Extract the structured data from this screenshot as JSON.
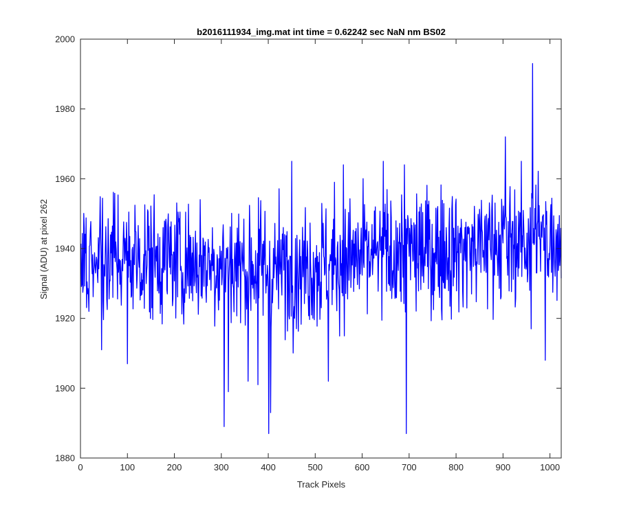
{
  "chart_data": {
    "type": "line",
    "title": "b2016111934_img.mat int time = 0.62242 sec  NaN nm BS02",
    "xlabel": "Track Pixels",
    "ylabel": "Signal (ADU) at pixel 262",
    "xlim": [
      0,
      1024
    ],
    "ylim": [
      1880,
      2000
    ],
    "xticks": [
      0,
      100,
      200,
      300,
      400,
      500,
      600,
      700,
      800,
      900,
      1000
    ],
    "yticks": [
      1880,
      1900,
      1920,
      1940,
      1960,
      1980,
      2000
    ],
    "grid": false,
    "series": [
      {
        "color": "#0000ff",
        "x_start": 1,
        "x_step": 1,
        "count": 1024,
        "mean": 1938,
        "spread": 9,
        "trend": [
          {
            "x": 0,
            "y": 1938
          },
          {
            "x": 300,
            "y": 1936
          },
          {
            "x": 420,
            "y": 1934
          },
          {
            "x": 700,
            "y": 1939
          },
          {
            "x": 1024,
            "y": 1942
          }
        ],
        "notable_points": [
          {
            "x": 45,
            "y": 1911
          },
          {
            "x": 100,
            "y": 1907
          },
          {
            "x": 306,
            "y": 1889
          },
          {
            "x": 315,
            "y": 1899
          },
          {
            "x": 357,
            "y": 1902
          },
          {
            "x": 378,
            "y": 1901
          },
          {
            "x": 401,
            "y": 1887
          },
          {
            "x": 405,
            "y": 1893
          },
          {
            "x": 450,
            "y": 1965
          },
          {
            "x": 528,
            "y": 1902
          },
          {
            "x": 560,
            "y": 1964
          },
          {
            "x": 645,
            "y": 1965
          },
          {
            "x": 690,
            "y": 1964
          },
          {
            "x": 694,
            "y": 1887
          },
          {
            "x": 905,
            "y": 1972
          },
          {
            "x": 960,
            "y": 1917
          },
          {
            "x": 963,
            "y": 1993
          },
          {
            "x": 990,
            "y": 1908
          }
        ]
      }
    ]
  }
}
